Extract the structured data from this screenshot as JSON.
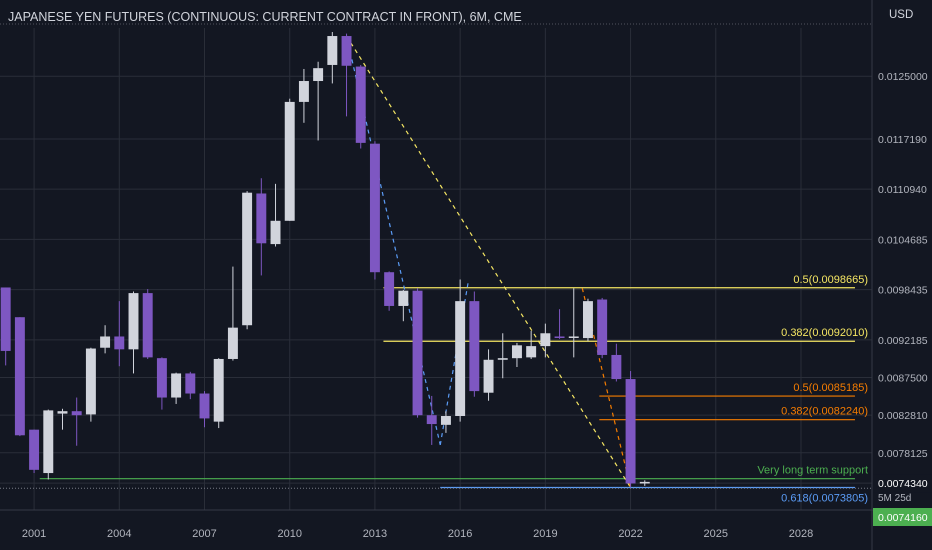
{
  "header": {
    "title": "JAPANESE YEN FUTURES (CONTINUOUS: CURRENT CONTRACT IN FRONT), 6M, CME",
    "currency": "USD"
  },
  "colors": {
    "background": "#131722",
    "grid": "#2a2e39",
    "bull": "#d1d4dc",
    "bear": "#7e57c2",
    "fib_yellow": "#f5e663",
    "fib_orange": "#f57c00",
    "support_green": "#4caf50",
    "fib_blue": "#5b9cf6",
    "last_price_bg": "#4caf50",
    "trend_yellow": "#f5e663",
    "trend_blue": "#5b9cf6",
    "trend_orange": "#f57c00"
  },
  "chart_data": {
    "type": "candlestick",
    "x_axis": {
      "ticks": [
        "2001",
        "2004",
        "2007",
        "2010",
        "2013",
        "2016",
        "2019",
        "2022",
        "2025",
        "2028"
      ],
      "range": [
        1999.8,
        2030.5
      ]
    },
    "y_axis": {
      "ticks": [
        "0.0125000",
        "0.0117190",
        "0.0110940",
        "0.0104685",
        "0.0098435",
        "0.0092185",
        "0.0087500",
        "0.0082810",
        "0.0078125",
        "0.0074340"
      ],
      "range": [
        0.0071,
        0.0131
      ]
    },
    "candles": [
      {
        "t": 2000.0,
        "o": 0.00987,
        "h": 0.00987,
        "l": 0.0089,
        "c": 0.00908
      },
      {
        "t": 2000.5,
        "o": 0.0095,
        "h": 0.0095,
        "l": 0.00802,
        "c": 0.00803
      },
      {
        "t": 2001.0,
        "o": 0.0081,
        "h": 0.0081,
        "l": 0.00756,
        "c": 0.0076
      },
      {
        "t": 2001.5,
        "o": 0.00756,
        "h": 0.00835,
        "l": 0.00748,
        "c": 0.00834
      },
      {
        "t": 2002.0,
        "o": 0.0083,
        "h": 0.00836,
        "l": 0.0081,
        "c": 0.00833
      },
      {
        "t": 2002.5,
        "o": 0.00833,
        "h": 0.0085,
        "l": 0.0079,
        "c": 0.00828
      },
      {
        "t": 2003.0,
        "o": 0.00829,
        "h": 0.00912,
        "l": 0.0082,
        "c": 0.00911
      },
      {
        "t": 2003.5,
        "o": 0.00912,
        "h": 0.0094,
        "l": 0.00905,
        "c": 0.00926
      },
      {
        "t": 2004.0,
        "o": 0.00926,
        "h": 0.0097,
        "l": 0.00889,
        "c": 0.0091
      },
      {
        "t": 2004.5,
        "o": 0.0091,
        "h": 0.00982,
        "l": 0.0088,
        "c": 0.0098
      },
      {
        "t": 2005.0,
        "o": 0.0098,
        "h": 0.00985,
        "l": 0.00898,
        "c": 0.009
      },
      {
        "t": 2005.5,
        "o": 0.00899,
        "h": 0.009,
        "l": 0.00835,
        "c": 0.0085
      },
      {
        "t": 2006.0,
        "o": 0.0085,
        "h": 0.00881,
        "l": 0.00842,
        "c": 0.0088
      },
      {
        "t": 2006.5,
        "o": 0.0088,
        "h": 0.00882,
        "l": 0.00848,
        "c": 0.00855
      },
      {
        "t": 2007.0,
        "o": 0.00855,
        "h": 0.00858,
        "l": 0.00813,
        "c": 0.00824
      },
      {
        "t": 2007.5,
        "o": 0.0082,
        "h": 0.00899,
        "l": 0.00812,
        "c": 0.00898
      },
      {
        "t": 2008.0,
        "o": 0.00898,
        "h": 0.01013,
        "l": 0.00896,
        "c": 0.00937
      },
      {
        "t": 2008.5,
        "o": 0.0094,
        "h": 0.01107,
        "l": 0.00935,
        "c": 0.01105
      },
      {
        "t": 2009.0,
        "o": 0.01104,
        "h": 0.01123,
        "l": 0.01002,
        "c": 0.01042
      },
      {
        "t": 2009.5,
        "o": 0.01041,
        "h": 0.01116,
        "l": 0.01038,
        "c": 0.0107
      },
      {
        "t": 2010.0,
        "o": 0.0107,
        "h": 0.01222,
        "l": 0.0107,
        "c": 0.01218
      },
      {
        "t": 2010.5,
        "o": 0.01218,
        "h": 0.01259,
        "l": 0.01192,
        "c": 0.01244
      },
      {
        "t": 2011.0,
        "o": 0.01244,
        "h": 0.01268,
        "l": 0.0117,
        "c": 0.0126
      },
      {
        "t": 2011.5,
        "o": 0.01264,
        "h": 0.01305,
        "l": 0.01241,
        "c": 0.013
      },
      {
        "t": 2012.0,
        "o": 0.013,
        "h": 0.01303,
        "l": 0.012,
        "c": 0.01263
      },
      {
        "t": 2012.5,
        "o": 0.01262,
        "h": 0.01264,
        "l": 0.0116,
        "c": 0.01167
      },
      {
        "t": 2013.0,
        "o": 0.01166,
        "h": 0.01169,
        "l": 0.00997,
        "c": 0.01006
      },
      {
        "t": 2013.5,
        "o": 0.01006,
        "h": 0.01007,
        "l": 0.00958,
        "c": 0.00964
      },
      {
        "t": 2014.0,
        "o": 0.00964,
        "h": 0.00984,
        "l": 0.00945,
        "c": 0.00983
      },
      {
        "t": 2014.5,
        "o": 0.00983,
        "h": 0.00986,
        "l": 0.00825,
        "c": 0.00828
      },
      {
        "t": 2015.0,
        "o": 0.00828,
        "h": 0.00852,
        "l": 0.00791,
        "c": 0.00817
      },
      {
        "t": 2015.5,
        "o": 0.00816,
        "h": 0.00833,
        "l": 0.00806,
        "c": 0.00827
      },
      {
        "t": 2016.0,
        "o": 0.00827,
        "h": 0.00997,
        "l": 0.0082,
        "c": 0.0097
      },
      {
        "t": 2016.5,
        "o": 0.0097,
        "h": 0.00982,
        "l": 0.00851,
        "c": 0.00858
      },
      {
        "t": 2017.0,
        "o": 0.00856,
        "h": 0.0091,
        "l": 0.00846,
        "c": 0.00897
      },
      {
        "t": 2017.5,
        "o": 0.00897,
        "h": 0.0093,
        "l": 0.00874,
        "c": 0.00899
      },
      {
        "t": 2018.0,
        "o": 0.00899,
        "h": 0.00918,
        "l": 0.00888,
        "c": 0.00915
      },
      {
        "t": 2018.5,
        "o": 0.009,
        "h": 0.00933,
        "l": 0.00898,
        "c": 0.00914
      },
      {
        "t": 2019.0,
        "o": 0.00914,
        "h": 0.00942,
        "l": 0.009,
        "c": 0.0093
      },
      {
        "t": 2019.5,
        "o": 0.00926,
        "h": 0.0096,
        "l": 0.00923,
        "c": 0.00925
      },
      {
        "t": 2020.0,
        "o": 0.00925,
        "h": 0.00986,
        "l": 0.009,
        "c": 0.00926
      },
      {
        "t": 2020.5,
        "o": 0.00924,
        "h": 0.00973,
        "l": 0.0092,
        "c": 0.0097
      },
      {
        "t": 2021.0,
        "o": 0.00972,
        "h": 0.00974,
        "l": 0.00899,
        "c": 0.00903
      },
      {
        "t": 2021.5,
        "o": 0.00903,
        "h": 0.00917,
        "l": 0.0087,
        "c": 0.00873
      },
      {
        "t": 2022.0,
        "o": 0.00873,
        "h": 0.00883,
        "l": 0.00738,
        "c": 0.00743
      },
      {
        "t": 2022.5,
        "o": 0.00743,
        "h": 0.00747,
        "l": 0.0074,
        "c": 0.00745
      }
    ],
    "horizontal_levels": [
      {
        "label": "0.5(0.0098665)",
        "value": 0.0098665,
        "from_t": 2013.3,
        "to_t": 2029.9,
        "color": "#f5e663"
      },
      {
        "label": "0.382(0.0092010)",
        "value": 0.009201,
        "from_t": 2013.3,
        "to_t": 2029.9,
        "color": "#f5e663"
      },
      {
        "label": "0.5(0.0085185)",
        "value": 0.0085185,
        "from_t": 2020.9,
        "to_t": 2029.9,
        "color": "#f57c00"
      },
      {
        "label": "0.382(0.0082240)",
        "value": 0.008224,
        "from_t": 2020.9,
        "to_t": 2029.9,
        "color": "#f57c00"
      },
      {
        "label": "Very long term support",
        "value": 0.00749,
        "from_t": 2001.2,
        "to_t": 2029.9,
        "color": "#4caf50"
      },
      {
        "label": "0.618(0.0073805)",
        "value": 0.0073805,
        "from_t": 2015.3,
        "to_t": 2029.9,
        "color": "#5b9cf6"
      }
    ],
    "trend_lines": [
      {
        "from": [
          2012.0,
          0.013
        ],
        "to": [
          2022.0,
          0.00738
        ],
        "color": "#f5e663"
      },
      {
        "from": [
          2012.0,
          0.013
        ],
        "to": [
          2015.3,
          0.00791
        ],
        "color": "#5b9cf6"
      },
      {
        "from": [
          2015.3,
          0.00791
        ],
        "to": [
          2016.3,
          0.00997
        ],
        "color": "#5b9cf6"
      },
      {
        "from": [
          2020.3,
          0.00986
        ],
        "to": [
          2022.0,
          0.00738
        ],
        "color": "#f57c00"
      }
    ],
    "price_labels": {
      "current_value": "0.0074340",
      "countdown": "5M 25d",
      "last_value": "0.0074160"
    }
  }
}
